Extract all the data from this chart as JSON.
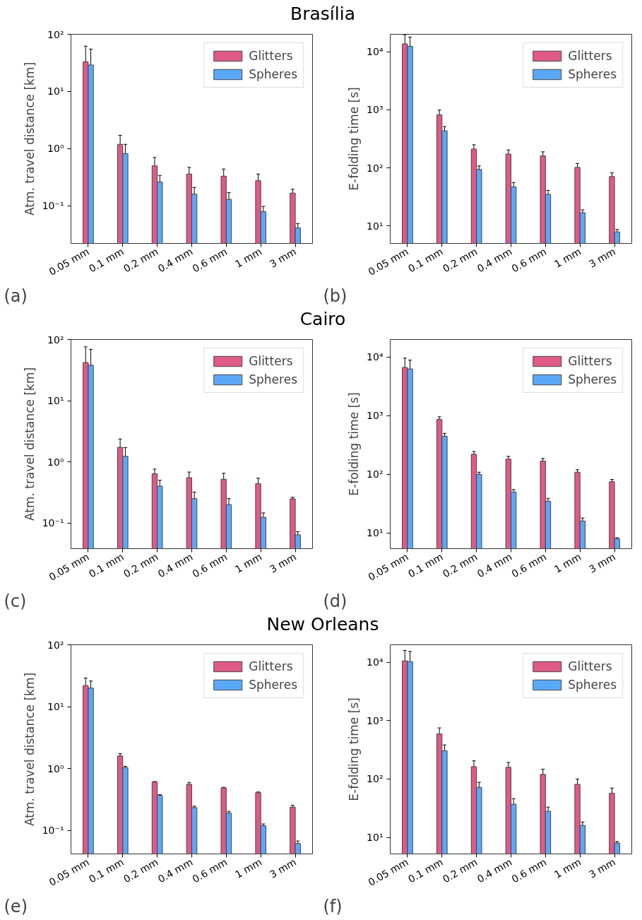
{
  "chart_data": [
    {
      "type": "bar",
      "title": "Brasília",
      "ylabel": "Atm. travel distance [km]",
      "annotations": [
        "(a)"
      ],
      "categories": [
        "0.05 mm",
        "0.1 mm",
        "0.2 mm",
        "0.4 mm",
        "0.6 mm",
        "1 mm",
        "3 mm"
      ],
      "log": true,
      "ylim": [
        0.022,
        100
      ],
      "yticks": [
        {
          "value": 0.1,
          "label": "10⁻¹"
        },
        {
          "value": 1,
          "label": "10⁰"
        },
        {
          "value": 10,
          "label": "10¹"
        },
        {
          "value": 100,
          "label": "10²"
        }
      ],
      "legend": "top right",
      "grid": false,
      "series": [
        {
          "name": "Glitters",
          "color": "#e05a87",
          "values": [
            33,
            1.19,
            0.5,
            0.36,
            0.33,
            0.275,
            0.167
          ],
          "errors": [
            [
              3.9,
              62
            ],
            [
              0.68,
              1.71
            ],
            [
              0.29,
              0.7
            ],
            [
              0.25,
              0.47
            ],
            [
              0.23,
              0.44
            ],
            [
              0.19,
              0.36
            ],
            [
              0.143,
              0.195
            ]
          ]
        },
        {
          "name": "Spheres",
          "color": "#5aa9f8",
          "values": [
            29,
            0.82,
            0.26,
            0.16,
            0.13,
            0.079,
            0.041
          ],
          "errors": [
            [
              3.7,
              55
            ],
            [
              0.44,
              1.19
            ],
            [
              0.17,
              0.34
            ],
            [
              0.113,
              0.21
            ],
            [
              0.093,
              0.17
            ],
            [
              0.06,
              0.098
            ],
            [
              0.033,
              0.049
            ]
          ]
        }
      ]
    },
    {
      "type": "bar",
      "ylabel": "E-folding time [s]",
      "annotations": [
        "(b)"
      ],
      "categories": [
        "0.05 mm",
        "0.1 mm",
        "0.2 mm",
        "0.4 mm",
        "0.6 mm",
        "1 mm",
        "3 mm"
      ],
      "log": true,
      "ylim": [
        5,
        20000
      ],
      "yticks": [
        {
          "value": 10,
          "label": "10¹"
        },
        {
          "value": 100,
          "label": "10²"
        },
        {
          "value": 1000,
          "label": "10³"
        },
        {
          "value": 10000,
          "label": "10⁴"
        }
      ],
      "legend": "top right",
      "grid": false,
      "series": [
        {
          "name": "Glitters",
          "color": "#e05a87",
          "values": [
            13700,
            820,
            211,
            173,
            161,
            102,
            71
          ],
          "errors": [
            [
              7900,
              19700
            ],
            [
              680,
              990
            ],
            [
              177,
              250
            ],
            [
              146,
              204
            ],
            [
              136,
              189
            ],
            [
              87,
              119
            ],
            [
              61,
              82
            ]
          ]
        },
        {
          "name": "Spheres",
          "color": "#5aa9f8",
          "values": [
            12400,
            435,
            94,
            47,
            35,
            16.9,
            7.9
          ],
          "errors": [
            [
              6800,
              17800
            ],
            [
              357,
              515
            ],
            [
              79,
              108
            ],
            [
              40,
              56
            ],
            [
              30,
              41
            ],
            [
              15.1,
              18.9
            ],
            [
              7.2,
              8.7
            ]
          ]
        }
      ]
    },
    {
      "type": "bar",
      "title": "Cairo",
      "ylabel": "Atm. travel distance [km]",
      "annotations": [
        "(c)"
      ],
      "categories": [
        "0.05 mm",
        "0.1 mm",
        "0.2 mm",
        "0.4 mm",
        "0.6 mm",
        "1 mm",
        "3 mm"
      ],
      "log": true,
      "ylim": [
        0.038,
        100
      ],
      "yticks": [
        {
          "value": 0.1,
          "label": "10⁻¹"
        },
        {
          "value": 1,
          "label": "10⁰"
        },
        {
          "value": 10,
          "label": "10¹"
        },
        {
          "value": 100,
          "label": "10²"
        }
      ],
      "legend": "top right",
      "grid": false,
      "series": [
        {
          "name": "Glitters",
          "color": "#e05a87",
          "values": [
            42,
            1.73,
            0.64,
            0.55,
            0.52,
            0.44,
            0.248
          ],
          "errors": [
            [
              7.8,
              76
            ],
            [
              1.16,
              2.36
            ],
            [
              0.51,
              0.76
            ],
            [
              0.43,
              0.68
            ],
            [
              0.4,
              0.65
            ],
            [
              0.33,
              0.54
            ],
            [
              0.233,
              0.263
            ]
          ]
        },
        {
          "name": "Spheres",
          "color": "#5aa9f8",
          "values": [
            38,
            1.23,
            0.4,
            0.25,
            0.2,
            0.124,
            0.064
          ],
          "errors": [
            [
              7.2,
              69
            ],
            [
              0.73,
              1.71
            ],
            [
              0.29,
              0.5
            ],
            [
              0.19,
              0.32
            ],
            [
              0.16,
              0.25
            ],
            [
              0.1,
              0.146
            ],
            [
              0.054,
              0.072
            ]
          ]
        }
      ]
    },
    {
      "type": "bar",
      "ylabel": "E-folding time [s]",
      "annotations": [
        "(d)"
      ],
      "categories": [
        "0.05 mm",
        "0.1 mm",
        "0.2 mm",
        "0.4 mm",
        "0.6 mm",
        "1 mm",
        "3 mm"
      ],
      "log": true,
      "ylim": [
        5.4,
        20000
      ],
      "yticks": [
        {
          "value": 10,
          "label": "10¹"
        },
        {
          "value": 100,
          "label": "10²"
        },
        {
          "value": 1000,
          "label": "10³"
        },
        {
          "value": 10000,
          "label": "10⁴"
        }
      ],
      "legend": "top right",
      "grid": false,
      "series": [
        {
          "name": "Glitters",
          "color": "#e05a87",
          "values": [
            6670,
            867,
            221,
            182,
            169,
            109,
            75
          ],
          "errors": [
            [
              3630,
              9660
            ],
            [
              770,
              960
            ],
            [
              201,
              246
            ],
            [
              166,
              203
            ],
            [
              152,
              187
            ],
            [
              98,
              120
            ],
            [
              69,
              82
            ]
          ]
        },
        {
          "name": "Spheres",
          "color": "#5aa9f8",
          "values": [
            6300,
            449,
            100,
            50,
            35,
            16,
            8
          ],
          "errors": [
            [
              3630,
              8900
            ],
            [
              395,
              501
            ],
            [
              90,
              109
            ],
            [
              45,
              55
            ],
            [
              31,
              39
            ],
            [
              14,
              18
            ],
            [
              7.8,
              8.3
            ]
          ]
        }
      ]
    },
    {
      "type": "bar",
      "title": "New Orleans",
      "ylabel": "Atm. travel distance [km]",
      "annotations": [
        "(e)"
      ],
      "categories": [
        "0.05 mm",
        "0.1 mm",
        "0.2 mm",
        "0.4 mm",
        "0.6 mm",
        "1 mm",
        "3 mm"
      ],
      "log": true,
      "ylim": [
        0.042,
        100
      ],
      "yticks": [
        {
          "value": 0.1,
          "label": "10⁻¹"
        },
        {
          "value": 1,
          "label": "10⁰"
        },
        {
          "value": 10,
          "label": "10¹"
        },
        {
          "value": 100,
          "label": "10²"
        }
      ],
      "legend": "top right",
      "grid": false,
      "series": [
        {
          "name": "Glitters",
          "color": "#e05a87",
          "values": [
            22,
            1.61,
            0.61,
            0.56,
            0.49,
            0.41,
            0.24
          ],
          "errors": [
            [
              15.6,
              29
            ],
            [
              1.49,
              1.75
            ],
            [
              0.6,
              0.62
            ],
            [
              0.52,
              0.6
            ],
            [
              0.48,
              0.5
            ],
            [
              0.39,
              0.42
            ],
            [
              0.226,
              0.256
            ]
          ]
        },
        {
          "name": "Spheres",
          "color": "#5aa9f8",
          "values": [
            20,
            1.04,
            0.37,
            0.235,
            0.192,
            0.12,
            0.062
          ],
          "errors": [
            [
              14,
              26
            ],
            [
              0.99,
              1.09
            ],
            [
              0.36,
              0.38
            ],
            [
              0.222,
              0.248
            ],
            [
              0.18,
              0.205
            ],
            [
              0.113,
              0.128
            ],
            [
              0.058,
              0.068
            ]
          ]
        }
      ]
    },
    {
      "type": "bar",
      "ylabel": "E-folding time [s]",
      "annotations": [
        "(f)"
      ],
      "categories": [
        "0.05 mm",
        "0.1 mm",
        "0.2 mm",
        "0.4 mm",
        "0.6 mm",
        "1 mm",
        "3 mm"
      ],
      "log": true,
      "ylim": [
        5.2,
        20000
      ],
      "yticks": [
        {
          "value": 10,
          "label": "10¹"
        },
        {
          "value": 100,
          "label": "10²"
        },
        {
          "value": 1000,
          "label": "10³"
        },
        {
          "value": 10000,
          "label": "10⁴"
        }
      ],
      "legend": "top right",
      "grid": false,
      "series": [
        {
          "name": "Glitters",
          "color": "#e05a87",
          "values": [
            10600,
            593,
            163,
            159,
            120,
            81,
            57
          ],
          "errors": [
            [
              5520,
              16000
            ],
            [
              448,
              752
            ],
            [
              129,
              205
            ],
            [
              123,
              193
            ],
            [
              96,
              147
            ],
            [
              62,
              100
            ],
            [
              47,
              70
            ]
          ]
        },
        {
          "name": "Spheres",
          "color": "#5aa9f8",
          "values": [
            10300,
            306,
            72,
            37,
            28,
            16,
            8
          ],
          "errors": [
            [
              5210,
              15400
            ],
            [
              233,
              384
            ],
            [
              56,
              88
            ],
            [
              30,
              46
            ],
            [
              23,
              33
            ],
            [
              14.4,
              18.3
            ],
            [
              7.6,
              8.5
            ]
          ]
        }
      ]
    }
  ]
}
